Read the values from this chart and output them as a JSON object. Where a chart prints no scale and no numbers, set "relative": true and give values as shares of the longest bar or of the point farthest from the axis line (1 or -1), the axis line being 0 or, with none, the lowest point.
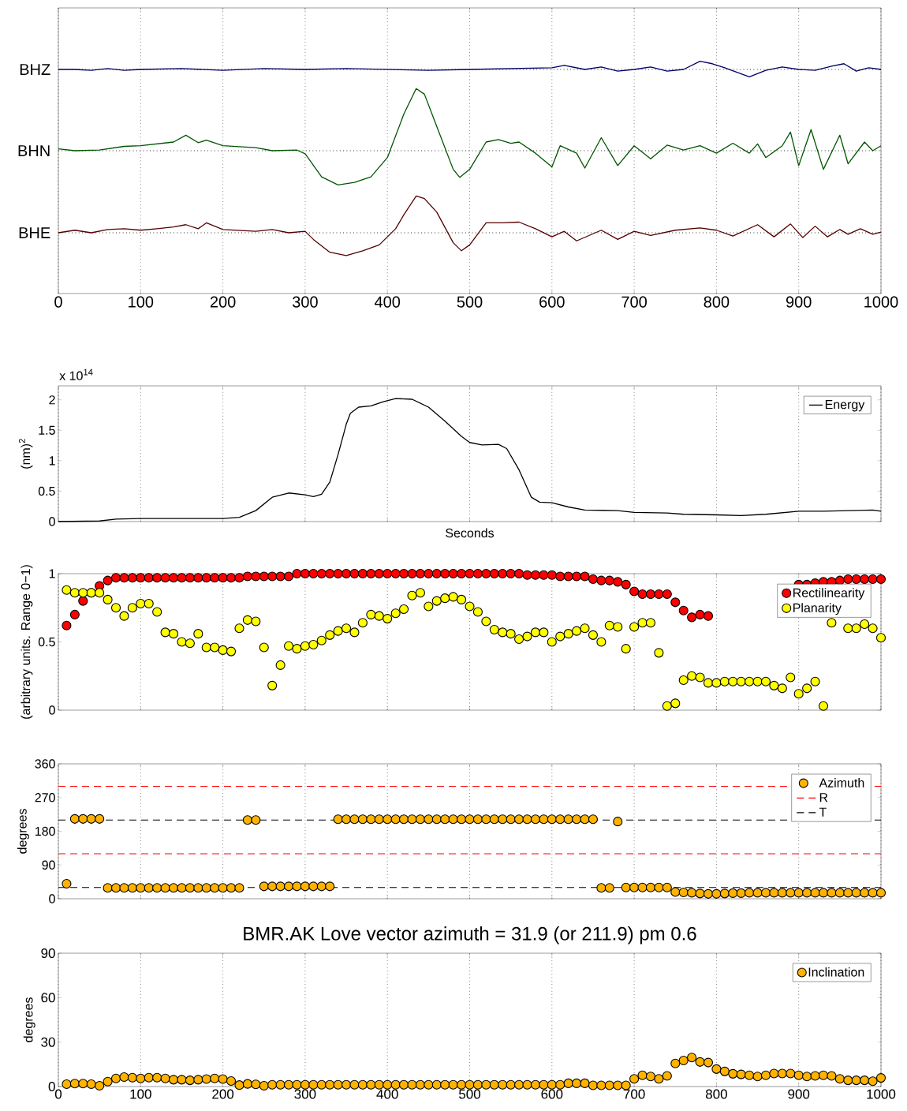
{
  "chart_data": [
    {
      "type": "line",
      "relative": true,
      "ylabel": "BHZ",
      "xlim": [
        0,
        1000
      ],
      "xticks": [
        0,
        100,
        200,
        300,
        400,
        500,
        600,
        700,
        800,
        900,
        1000
      ],
      "tick_labels": false,
      "grid": "x",
      "ref_lines": [
        {
          "axis": "y",
          "value": 0,
          "color": "#000000",
          "line_style": "dotted"
        }
      ],
      "series": [
        {
          "color": "#000066",
          "x": [
            0,
            20,
            40,
            60,
            80,
            100,
            150,
            200,
            250,
            300,
            350,
            400,
            450,
            500,
            550,
            600,
            615,
            640,
            660,
            680,
            700,
            720,
            740,
            760,
            780,
            795,
            810,
            840,
            860,
            880,
            900,
            920,
            940,
            955,
            970,
            985,
            1000
          ],
          "values": [
            0,
            0,
            -0.1,
            0.1,
            -0.1,
            0,
            0.1,
            -0.1,
            0.1,
            0,
            0.1,
            0,
            -0.1,
            0,
            0.1,
            0.2,
            0.5,
            0,
            0.3,
            -0.2,
            0,
            0.3,
            -0.2,
            0,
            1,
            0.7,
            0.2,
            -0.9,
            -0.1,
            0.3,
            0,
            -0.1,
            0.4,
            0.7,
            -0.2,
            0.2,
            0
          ]
        }
      ]
    },
    {
      "type": "line",
      "relative": true,
      "ylabel": "BHN",
      "xlim": [
        0,
        1000
      ],
      "xticks": [
        0,
        100,
        200,
        300,
        400,
        500,
        600,
        700,
        800,
        900,
        1000
      ],
      "tick_labels": false,
      "grid": "x",
      "ref_lines": [
        {
          "axis": "y",
          "value": 0,
          "color": "#000000",
          "line_style": "dotted"
        }
      ],
      "series": [
        {
          "color": "#005500",
          "x": [
            0,
            20,
            50,
            80,
            100,
            140,
            155,
            170,
            180,
            200,
            240,
            260,
            290,
            300,
            320,
            340,
            360,
            380,
            400,
            420,
            435,
            445,
            460,
            480,
            488,
            500,
            520,
            535,
            550,
            560,
            580,
            600,
            610,
            630,
            640,
            660,
            680,
            700,
            720,
            740,
            760,
            780,
            800,
            820,
            840,
            850,
            860,
            880,
            890,
            900,
            915,
            930,
            950,
            960,
            980,
            990,
            1000
          ],
          "values": [
            0.03,
            0,
            0.01,
            0.07,
            0.08,
            0.14,
            0.25,
            0.13,
            0.17,
            0.08,
            0.05,
            0,
            0.01,
            -0.05,
            -0.42,
            -0.55,
            -0.51,
            -0.42,
            -0.11,
            0.59,
            1,
            0.91,
            0.39,
            -0.3,
            -0.43,
            -0.3,
            0.14,
            0.18,
            0.12,
            0.14,
            -0.04,
            -0.26,
            0.08,
            -0.04,
            -0.28,
            0.21,
            -0.24,
            0.08,
            -0.13,
            0.09,
            0.01,
            0.08,
            -0.04,
            0.12,
            -0.04,
            0.11,
            -0.11,
            0.08,
            0.3,
            -0.24,
            0.34,
            -0.3,
            0.25,
            -0.21,
            0.14,
            0,
            0.08
          ]
        }
      ]
    },
    {
      "type": "line",
      "relative": true,
      "ylabel": "BHE",
      "xlim": [
        0,
        1000
      ],
      "xticks": [
        0,
        100,
        200,
        300,
        400,
        500,
        600,
        700,
        800,
        900,
        1000
      ],
      "tick_labels": "x",
      "grid": "x",
      "ref_lines": [
        {
          "axis": "y",
          "value": 0,
          "color": "#000000",
          "line_style": "dotted"
        }
      ],
      "series": [
        {
          "color": "#550000",
          "x": [
            0,
            20,
            40,
            60,
            80,
            100,
            120,
            140,
            155,
            170,
            180,
            200,
            240,
            260,
            280,
            300,
            310,
            330,
            350,
            370,
            390,
            410,
            420,
            435,
            445,
            460,
            480,
            490,
            500,
            520,
            540,
            560,
            580,
            600,
            615,
            630,
            660,
            680,
            700,
            720,
            750,
            780,
            800,
            820,
            850,
            870,
            890,
            905,
            920,
            935,
            950,
            960,
            975,
            990,
            1000
          ],
          "values": [
            0,
            0.07,
            0,
            0.09,
            0.11,
            0.07,
            0.11,
            0.16,
            0.22,
            0.11,
            0.27,
            0.09,
            0.04,
            0.09,
            0,
            0.04,
            -0.18,
            -0.53,
            -0.62,
            -0.49,
            -0.33,
            0.11,
            0.49,
            1,
            0.93,
            0.56,
            -0.27,
            -0.49,
            -0.33,
            0.27,
            0.27,
            0.29,
            0.11,
            -0.11,
            0.04,
            -0.22,
            0.07,
            -0.18,
            0.04,
            -0.07,
            0.07,
            0.13,
            0.07,
            -0.09,
            0.22,
            -0.11,
            0.24,
            -0.13,
            0.18,
            -0.11,
            0.09,
            -0.04,
            0.11,
            -0.04,
            0.02
          ]
        }
      ]
    },
    {
      "type": "line",
      "xlabel": "Seconds",
      "ylabel": "(nm)$^{2}$",
      "annotations": [
        "x 10$^{14}$"
      ],
      "xlim": [
        0,
        1000
      ],
      "xticks": [
        0,
        100,
        200,
        300,
        400,
        500,
        600,
        700,
        800,
        900,
        1000
      ],
      "ylim": [
        0,
        2.23
      ],
      "yticks": [
        0,
        0.5,
        1,
        1.5,
        2
      ],
      "tick_labels": "y",
      "grid": "x",
      "legend": "top right",
      "series": [
        {
          "name": "Energy",
          "color": "#000000",
          "x": [
            0,
            50,
            70,
            100,
            200,
            220,
            240,
            260,
            280,
            300,
            310,
            320,
            330,
            340,
            350,
            355,
            365,
            380,
            395,
            410,
            430,
            450,
            470,
            490,
            500,
            515,
            535,
            545,
            560,
            575,
            585,
            600,
            620,
            640,
            680,
            700,
            740,
            760,
            800,
            830,
            860,
            900,
            930,
            960,
            990,
            1000
          ],
          "values": [
            0,
            0.01,
            0.04,
            0.05,
            0.05,
            0.07,
            0.18,
            0.4,
            0.47,
            0.44,
            0.41,
            0.45,
            0.65,
            1.1,
            1.6,
            1.78,
            1.88,
            1.9,
            1.97,
            2.02,
            2.01,
            1.88,
            1.65,
            1.4,
            1.3,
            1.26,
            1.27,
            1.2,
            0.85,
            0.4,
            0.32,
            0.31,
            0.24,
            0.19,
            0.18,
            0.15,
            0.14,
            0.12,
            0.11,
            0.1,
            0.12,
            0.17,
            0.17,
            0.18,
            0.19,
            0.17
          ]
        }
      ]
    },
    {
      "type": "scatter",
      "ylabel": "(arbitrary units. Range 0−1)",
      "xlim": [
        0,
        1000
      ],
      "xticks": [
        0,
        100,
        200,
        300,
        400,
        500,
        600,
        700,
        800,
        900,
        1000
      ],
      "ylim": [
        0,
        1
      ],
      "yticks": [
        0,
        0.5,
        1
      ],
      "tick_labels": "y",
      "grid": "x",
      "legend": "top right",
      "marker": "circle",
      "x": [
        10,
        20,
        30,
        40,
        50,
        60,
        70,
        80,
        90,
        100,
        110,
        120,
        130,
        140,
        150,
        160,
        170,
        180,
        190,
        200,
        210,
        220,
        230,
        240,
        250,
        260,
        270,
        280,
        290,
        300,
        310,
        320,
        330,
        340,
        350,
        360,
        370,
        380,
        390,
        400,
        410,
        420,
        430,
        440,
        450,
        460,
        470,
        480,
        490,
        500,
        510,
        520,
        530,
        540,
        550,
        560,
        570,
        580,
        590,
        600,
        610,
        620,
        630,
        640,
        650,
        660,
        670,
        680,
        690,
        700,
        710,
        720,
        730,
        740,
        750,
        760,
        770,
        780,
        790,
        800,
        810,
        820,
        830,
        840,
        850,
        860,
        870,
        880,
        890,
        900,
        910,
        920,
        930,
        940,
        950,
        960,
        970,
        980,
        990,
        1000
      ],
      "series": [
        {
          "name": "Rectilinearity",
          "color": "#ff0000",
          "values": [
            0.62,
            0.7,
            0.8,
            0.86,
            0.91,
            0.95,
            0.97,
            0.97,
            0.97,
            0.97,
            0.97,
            0.97,
            0.97,
            0.97,
            0.97,
            0.97,
            0.97,
            0.97,
            0.97,
            0.97,
            0.97,
            0.97,
            0.98,
            0.98,
            0.98,
            0.98,
            0.98,
            0.98,
            1.0,
            1.0,
            1.0,
            1.0,
            1.0,
            1.0,
            1.0,
            1.0,
            1.0,
            1.0,
            1.0,
            1.0,
            1.0,
            1.0,
            1.0,
            1.0,
            1.0,
            1.0,
            1.0,
            1.0,
            1.0,
            1.0,
            1.0,
            1.0,
            1.0,
            1.0,
            1.0,
            1.0,
            0.99,
            0.99,
            0.99,
            0.99,
            0.98,
            0.98,
            0.98,
            0.98,
            0.96,
            0.95,
            0.95,
            0.94,
            0.92,
            0.87,
            0.85,
            0.85,
            0.85,
            0.85,
            0.79,
            0.73,
            0.68,
            0.7,
            0.69,
            null,
            null,
            null,
            null,
            null,
            null,
            null,
            null,
            null,
            null,
            0.92,
            0.92,
            0.93,
            0.94,
            0.94,
            0.95,
            0.96,
            0.96,
            0.96,
            0.96,
            0.96
          ]
        },
        {
          "name": "Planarity",
          "color": "#ffff00",
          "values": [
            0.88,
            0.86,
            0.86,
            0.86,
            0.86,
            0.81,
            0.75,
            0.69,
            0.75,
            0.78,
            0.78,
            0.72,
            0.57,
            0.56,
            0.5,
            0.49,
            0.56,
            0.46,
            0.46,
            0.44,
            0.43,
            0.6,
            0.66,
            0.65,
            0.46,
            0.18,
            0.33,
            0.47,
            0.45,
            0.47,
            0.48,
            0.51,
            0.55,
            0.58,
            0.6,
            0.57,
            0.64,
            0.7,
            0.69,
            0.67,
            0.71,
            0.74,
            0.84,
            0.86,
            0.76,
            0.8,
            0.82,
            0.83,
            0.81,
            0.76,
            0.72,
            0.65,
            0.59,
            0.57,
            0.56,
            0.52,
            0.54,
            0.57,
            0.57,
            0.5,
            0.54,
            0.56,
            0.58,
            0.6,
            0.55,
            0.5,
            0.62,
            0.61,
            0.45,
            0.61,
            0.64,
            0.64,
            0.42,
            0.03,
            0.05,
            0.22,
            0.25,
            0.24,
            0.2,
            0.2,
            0.21,
            0.21,
            0.21,
            0.21,
            0.21,
            0.21,
            0.18,
            0.16,
            0.24,
            0.12,
            0.16,
            0.21,
            0.03,
            0.64,
            null,
            0.6,
            0.6,
            0.63,
            0.6,
            0.53
          ]
        }
      ]
    },
    {
      "type": "scatter",
      "ylabel": "degrees",
      "xlim": [
        0,
        1000
      ],
      "xticks": [
        0,
        100,
        200,
        300,
        400,
        500,
        600,
        700,
        800,
        900,
        1000
      ],
      "ylim": [
        0,
        360
      ],
      "yticks": [
        0,
        90,
        180,
        270,
        360
      ],
      "tick_labels": "y",
      "grid": "x",
      "legend": "top right",
      "marker": "circle",
      "x": [
        10,
        20,
        30,
        40,
        50,
        60,
        70,
        80,
        90,
        100,
        110,
        120,
        130,
        140,
        150,
        160,
        170,
        180,
        190,
        200,
        210,
        220,
        230,
        240,
        250,
        260,
        270,
        280,
        290,
        300,
        310,
        320,
        330,
        340,
        350,
        360,
        370,
        380,
        390,
        400,
        410,
        420,
        430,
        440,
        450,
        460,
        470,
        480,
        490,
        500,
        510,
        520,
        530,
        540,
        550,
        560,
        570,
        580,
        590,
        600,
        610,
        620,
        630,
        640,
        650,
        660,
        670,
        680,
        690,
        700,
        710,
        720,
        730,
        740,
        750,
        760,
        770,
        780,
        790,
        800,
        810,
        820,
        830,
        840,
        850,
        860,
        870,
        880,
        890,
        900,
        910,
        920,
        930,
        940,
        950,
        960,
        970,
        980,
        990,
        1000
      ],
      "series": [
        {
          "name": "Azimuth",
          "color": "#ffb300",
          "values": [
            40,
            213,
            213,
            213,
            213,
            29,
            29,
            29,
            29,
            29,
            29,
            29,
            29,
            29,
            29,
            29,
            29,
            29,
            29,
            29,
            29,
            29,
            210,
            210,
            33,
            33,
            33,
            33,
            33,
            33,
            33,
            33,
            33,
            212,
            212,
            212,
            212,
            212,
            212,
            212,
            212,
            212,
            212,
            212,
            212,
            212,
            212,
            212,
            212,
            212,
            212,
            212,
            212,
            212,
            212,
            212,
            212,
            212,
            212,
            212,
            212,
            212,
            212,
            212,
            212,
            29,
            29,
            206,
            30,
            30,
            30,
            30,
            30,
            30,
            18,
            17,
            16,
            14,
            13,
            13,
            14,
            15,
            15,
            16,
            16,
            16,
            16,
            16,
            16,
            16,
            16,
            16,
            16,
            16,
            16,
            16,
            16,
            16,
            16,
            16
          ]
        }
      ],
      "ref_lines": [
        {
          "axis": "y",
          "value": 300,
          "label": "R",
          "color": "#ff0000",
          "line_style": "dashed"
        },
        {
          "axis": "y",
          "value": 120,
          "color": "#ff0000",
          "line_style": "dashed"
        },
        {
          "axis": "y",
          "value": 210,
          "label": "T",
          "color": "#000000",
          "line_style": "dashed"
        },
        {
          "axis": "y",
          "value": 30,
          "color": "#000000",
          "line_style": "dashed"
        }
      ]
    },
    {
      "type": "scatter",
      "title": "BMR.AK Love vector azimuth = 31.9 (or 211.9) pm 0.6",
      "ylabel": "degrees",
      "xlim": [
        0,
        1000
      ],
      "xticks": [
        0,
        100,
        200,
        300,
        400,
        500,
        600,
        700,
        800,
        900,
        1000
      ],
      "ylim": [
        0,
        90
      ],
      "yticks": [
        0,
        30,
        60,
        90
      ],
      "grid": "x",
      "legend": "top right",
      "marker": "circle",
      "x": [
        10,
        20,
        30,
        40,
        50,
        60,
        70,
        80,
        90,
        100,
        110,
        120,
        130,
        140,
        150,
        160,
        170,
        180,
        190,
        200,
        210,
        220,
        230,
        240,
        250,
        260,
        270,
        280,
        290,
        300,
        310,
        320,
        330,
        340,
        350,
        360,
        370,
        380,
        390,
        400,
        410,
        420,
        430,
        440,
        450,
        460,
        470,
        480,
        490,
        500,
        510,
        520,
        530,
        540,
        550,
        560,
        570,
        580,
        590,
        600,
        610,
        620,
        630,
        640,
        650,
        660,
        670,
        680,
        690,
        700,
        710,
        720,
        730,
        740,
        750,
        760,
        770,
        780,
        790,
        800,
        810,
        820,
        830,
        840,
        850,
        860,
        870,
        880,
        890,
        900,
        910,
        920,
        930,
        940,
        950,
        960,
        970,
        980,
        990,
        1000
      ],
      "series": [
        {
          "name": "Inclination",
          "color": "#ffb300",
          "values": [
            1.6,
            2,
            2,
            1.6,
            0.5,
            3.3,
            5.5,
            6.4,
            6,
            5.5,
            6,
            6,
            5.5,
            4.6,
            4.6,
            4.2,
            4.6,
            5.1,
            5.5,
            5.1,
            3.7,
            1,
            1.8,
            1.5,
            0.5,
            1.2,
            1.2,
            1.2,
            1.2,
            1.2,
            1.2,
            1.2,
            1.2,
            1.2,
            1.2,
            1.2,
            1.2,
            1.2,
            1.2,
            1.2,
            1.2,
            1.2,
            1.2,
            1.2,
            1.2,
            1.2,
            1.2,
            1.2,
            1.2,
            1.2,
            1.2,
            1.2,
            1.2,
            1.2,
            1.2,
            1.2,
            1.2,
            1.2,
            1.2,
            1.2,
            1.2,
            2.2,
            2.2,
            2.2,
            0.8,
            0.8,
            0.8,
            0.8,
            0.8,
            5.2,
            7.6,
            6.8,
            5.2,
            7.2,
            15.6,
            17.6,
            19.6,
            16.6,
            16.2,
            11.8,
            10.2,
            8.6,
            8.2,
            7.6,
            6.8,
            7.6,
            8.8,
            8.8,
            8.8,
            7.6,
            6.8,
            7.2,
            7.6,
            7.2,
            5.2,
            4.2,
            4.2,
            4.2,
            3.6,
            5.8
          ]
        }
      ]
    }
  ]
}
